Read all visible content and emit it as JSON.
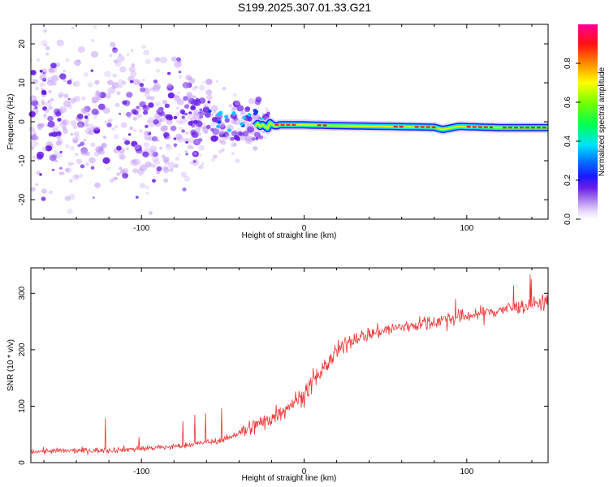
{
  "title": "S199.2025.307.01.33.G21",
  "colors": {
    "snr_line": "#ee3333",
    "spec_low": "#c49bf5",
    "spec_high": "#6a1fe6"
  },
  "chart_data": [
    {
      "id": "spectrogram",
      "type": "heatmap",
      "title": "S199.2025.307.01.33.G21",
      "xlabel": "Height of straight line (km)",
      "ylabel": "Frequency (Hz)",
      "xlim": [
        -168,
        150
      ],
      "ylim": [
        -25,
        25
      ],
      "x_ticks": [
        -100,
        0,
        100
      ],
      "y_ticks": [
        -20,
        -10,
        0,
        10,
        20
      ],
      "ridge": [
        {
          "x": -30,
          "y": -1.0
        },
        {
          "x": -20,
          "y": -0.8
        },
        {
          "x": 0,
          "y": -0.8
        },
        {
          "x": 20,
          "y": -1.0
        },
        {
          "x": 50,
          "y": -1.2
        },
        {
          "x": 80,
          "y": -1.4
        },
        {
          "x": 85,
          "y": -2.0
        },
        {
          "x": 95,
          "y": -1.2
        },
        {
          "x": 120,
          "y": -1.5
        },
        {
          "x": 150,
          "y": -1.5
        }
      ],
      "colorbar": {
        "label": "Normalized spectral amplitude",
        "range": [
          0,
          1
        ],
        "ticks": [
          0.0,
          0.2,
          0.4,
          0.6,
          0.8
        ]
      }
    },
    {
      "id": "snr",
      "type": "line",
      "xlabel": "Height of straight line (km)",
      "ylabel": "SNR (10 * v/v)",
      "xlim": [
        -168,
        150
      ],
      "ylim": [
        0,
        345
      ],
      "x_ticks": [
        -100,
        0,
        100
      ],
      "y_ticks": [
        0,
        100,
        200,
        300
      ],
      "trend": [
        {
          "x": -168,
          "y": 20
        },
        {
          "x": -120,
          "y": 22
        },
        {
          "x": -80,
          "y": 28
        },
        {
          "x": -50,
          "y": 40
        },
        {
          "x": -30,
          "y": 65
        },
        {
          "x": -20,
          "y": 80
        },
        {
          "x": -10,
          "y": 100
        },
        {
          "x": 0,
          "y": 120
        },
        {
          "x": 10,
          "y": 160
        },
        {
          "x": 20,
          "y": 195
        },
        {
          "x": 30,
          "y": 220
        },
        {
          "x": 50,
          "y": 235
        },
        {
          "x": 70,
          "y": 245
        },
        {
          "x": 100,
          "y": 260
        },
        {
          "x": 120,
          "y": 270
        },
        {
          "x": 150,
          "y": 285
        }
      ]
    }
  ]
}
